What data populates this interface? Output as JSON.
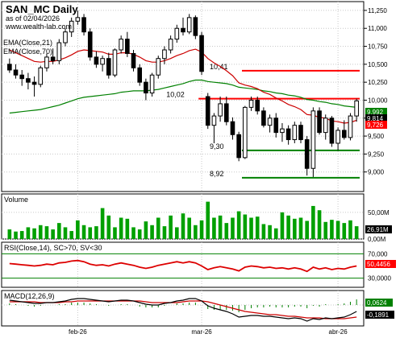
{
  "chart_data": {
    "type": "stock-candlestick",
    "header": {
      "title": "SAN_MC Daily",
      "date_line": "as of 02/04/2026",
      "site": "www.wealth-lab.com",
      "ema_short": "EMA(Close,21)",
      "ema_long": "EMA(Close,70)"
    },
    "x_labels": [
      {
        "label": "feb-26",
        "index": 11
      },
      {
        "label": "mar-26",
        "index": 31
      },
      {
        "label": "abr-26",
        "index": 53
      }
    ],
    "price_axis": {
      "range": [
        8.75,
        11.35
      ],
      "ticks": [
        "11,250",
        "11,000",
        "10,750",
        "10,500",
        "10,250",
        "10,000",
        "9,750",
        "9,500",
        "9,250",
        "9,000"
      ],
      "tick_values": [
        11.25,
        11.0,
        10.75,
        10.5,
        10.25,
        10.0,
        9.75,
        9.5,
        9.25,
        9.0
      ]
    },
    "candles": [
      {
        "o": 10.5,
        "h": 10.58,
        "l": 10.38,
        "c": 10.42
      },
      {
        "o": 10.42,
        "h": 10.5,
        "l": 10.3,
        "c": 10.35
      },
      {
        "o": 10.35,
        "h": 10.42,
        "l": 10.2,
        "c": 10.3
      },
      {
        "o": 10.3,
        "h": 10.38,
        "l": 10.15,
        "c": 10.25
      },
      {
        "o": 10.25,
        "h": 10.33,
        "l": 10.05,
        "c": 10.22
      },
      {
        "o": 10.22,
        "h": 10.48,
        "l": 10.18,
        "c": 10.45
      },
      {
        "o": 10.45,
        "h": 10.65,
        "l": 10.4,
        "c": 10.6
      },
      {
        "o": 10.6,
        "h": 10.72,
        "l": 10.5,
        "c": 10.55
      },
      {
        "o": 10.55,
        "h": 10.85,
        "l": 10.5,
        "c": 10.8
      },
      {
        "o": 10.8,
        "h": 11.0,
        "l": 10.75,
        "c": 10.95
      },
      {
        "o": 10.95,
        "h": 11.15,
        "l": 10.88,
        "c": 11.1
      },
      {
        "o": 11.1,
        "h": 11.25,
        "l": 11.05,
        "c": 11.15
      },
      {
        "o": 11.15,
        "h": 11.2,
        "l": 10.9,
        "c": 10.95
      },
      {
        "o": 10.95,
        "h": 11.0,
        "l": 10.55,
        "c": 10.6
      },
      {
        "o": 10.6,
        "h": 10.68,
        "l": 10.45,
        "c": 10.5
      },
      {
        "o": 10.5,
        "h": 10.62,
        "l": 10.4,
        "c": 10.58
      },
      {
        "o": 10.58,
        "h": 10.66,
        "l": 10.3,
        "c": 10.35
      },
      {
        "o": 10.35,
        "h": 10.72,
        "l": 10.32,
        "c": 10.7
      },
      {
        "o": 10.7,
        "h": 10.9,
        "l": 10.65,
        "c": 10.85
      },
      {
        "o": 10.85,
        "h": 10.95,
        "l": 10.6,
        "c": 10.65
      },
      {
        "o": 10.65,
        "h": 10.7,
        "l": 10.4,
        "c": 10.45
      },
      {
        "o": 10.45,
        "h": 10.5,
        "l": 10.2,
        "c": 10.25
      },
      {
        "o": 10.25,
        "h": 10.3,
        "l": 10.0,
        "c": 10.1
      },
      {
        "o": 10.1,
        "h": 10.38,
        "l": 10.05,
        "c": 10.35
      },
      {
        "o": 10.35,
        "h": 10.62,
        "l": 10.3,
        "c": 10.58
      },
      {
        "o": 10.58,
        "h": 10.75,
        "l": 10.5,
        "c": 10.7
      },
      {
        "o": 10.7,
        "h": 10.9,
        "l": 10.65,
        "c": 10.85
      },
      {
        "o": 10.85,
        "h": 11.05,
        "l": 10.8,
        "c": 11.0
      },
      {
        "o": 11.0,
        "h": 11.15,
        "l": 10.9,
        "c": 10.95
      },
      {
        "o": 10.95,
        "h": 11.2,
        "l": 10.92,
        "c": 11.15
      },
      {
        "o": 11.15,
        "h": 11.18,
        "l": 10.85,
        "c": 10.9
      },
      {
        "o": 10.9,
        "h": 10.95,
        "l": 10.35,
        "c": 10.4
      },
      {
        "o": 10.05,
        "h": 10.1,
        "l": 9.6,
        "c": 9.65
      },
      {
        "o": 9.65,
        "h": 9.82,
        "l": 9.4,
        "c": 9.78
      },
      {
        "o": 9.78,
        "h": 10.05,
        "l": 9.7,
        "c": 9.95
      },
      {
        "o": 9.95,
        "h": 10.05,
        "l": 9.65,
        "c": 9.7
      },
      {
        "o": 9.7,
        "h": 9.76,
        "l": 9.45,
        "c": 9.52
      },
      {
        "o": 9.52,
        "h": 9.56,
        "l": 9.15,
        "c": 9.2
      },
      {
        "o": 9.2,
        "h": 9.92,
        "l": 9.18,
        "c": 9.9
      },
      {
        "o": 9.9,
        "h": 10.05,
        "l": 9.85,
        "c": 10.0
      },
      {
        "o": 10.0,
        "h": 10.05,
        "l": 9.8,
        "c": 9.85
      },
      {
        "o": 9.85,
        "h": 9.9,
        "l": 9.62,
        "c": 9.65
      },
      {
        "o": 9.65,
        "h": 9.8,
        "l": 9.55,
        "c": 9.75
      },
      {
        "o": 9.75,
        "h": 9.82,
        "l": 9.48,
        "c": 9.55
      },
      {
        "o": 9.55,
        "h": 9.68,
        "l": 9.42,
        "c": 9.6
      },
      {
        "o": 9.6,
        "h": 9.65,
        "l": 9.38,
        "c": 9.45
      },
      {
        "o": 9.45,
        "h": 9.7,
        "l": 9.4,
        "c": 9.65
      },
      {
        "o": 9.65,
        "h": 9.7,
        "l": 9.4,
        "c": 9.45
      },
      {
        "o": 9.45,
        "h": 9.5,
        "l": 8.95,
        "c": 9.05
      },
      {
        "o": 9.05,
        "h": 9.9,
        "l": 8.93,
        "c": 9.85
      },
      {
        "o": 9.85,
        "h": 9.9,
        "l": 9.52,
        "c": 9.55
      },
      {
        "o": 9.55,
        "h": 9.8,
        "l": 9.45,
        "c": 9.75
      },
      {
        "o": 9.75,
        "h": 9.78,
        "l": 9.35,
        "c": 9.4
      },
      {
        "o": 9.4,
        "h": 9.62,
        "l": 9.3,
        "c": 9.58
      },
      {
        "o": 9.58,
        "h": 9.72,
        "l": 9.45,
        "c": 9.48
      },
      {
        "o": 9.48,
        "h": 9.82,
        "l": 9.44,
        "c": 9.78
      },
      {
        "o": 9.78,
        "h": 10.02,
        "l": 9.7,
        "c": 9.99
      }
    ],
    "ema21": [
      10.7,
      10.66,
      10.62,
      10.58,
      10.54,
      10.53,
      10.54,
      10.54,
      10.56,
      10.59,
      10.63,
      10.68,
      10.7,
      10.69,
      10.68,
      10.67,
      10.64,
      10.64,
      10.66,
      10.66,
      10.64,
      10.6,
      10.55,
      10.53,
      10.53,
      10.55,
      10.58,
      10.62,
      10.65,
      10.69,
      10.71,
      10.67,
      10.58,
      10.52,
      10.47,
      10.41,
      10.34,
      10.24,
      10.21,
      10.19,
      10.16,
      10.11,
      10.08,
      10.03,
      9.99,
      9.94,
      9.91,
      9.87,
      9.8,
      9.79,
      9.76,
      9.75,
      9.71,
      9.7,
      9.68,
      9.69,
      9.72
    ],
    "ema70": [
      9.82,
      9.83,
      9.84,
      9.85,
      9.86,
      9.87,
      9.89,
      9.91,
      9.93,
      9.96,
      9.99,
      10.02,
      10.04,
      10.05,
      10.06,
      10.07,
      10.08,
      10.09,
      10.11,
      10.12,
      10.13,
      10.13,
      10.13,
      10.14,
      10.15,
      10.17,
      10.19,
      10.21,
      10.23,
      10.26,
      10.28,
      10.28,
      10.26,
      10.25,
      10.24,
      10.23,
      10.21,
      10.18,
      10.17,
      10.16,
      10.15,
      10.13,
      10.12,
      10.1,
      10.09,
      10.07,
      10.06,
      10.04,
      10.01,
      10.0,
      9.98,
      9.97,
      9.95,
      9.94,
      9.92,
      9.91,
      9.9
    ],
    "levels": [
      {
        "label": "10,41",
        "value": 10.41,
        "color": "#ff0000",
        "x_from_index": 38
      },
      {
        "label": "10,02",
        "value": 10.02,
        "color": "#ff0000",
        "x_from_index": 31
      },
      {
        "label": "9,30",
        "value": 9.3,
        "color": "#008000",
        "x_from_index": 38
      },
      {
        "label": "8,92",
        "value": 8.92,
        "color": "#008000",
        "x_from_index": 38
      }
    ],
    "price_badges": [
      {
        "label": "9,992",
        "color": "#008000",
        "value": 9.99
      },
      {
        "label": "9,814",
        "color": "#000000",
        "value": 9.814
      },
      {
        "label": "9,726",
        "color": "#ff0000",
        "value": 9.726
      }
    ],
    "volume": {
      "title": "Volume",
      "ticks": [
        "50,00M",
        "0,00M"
      ],
      "tick_values": [
        50,
        0
      ],
      "max": 80,
      "values": [
        18,
        14,
        15,
        22,
        20,
        26,
        24,
        18,
        30,
        22,
        15,
        35,
        26,
        22,
        24,
        58,
        44,
        22,
        40,
        38,
        22,
        18,
        33,
        26,
        40,
        24,
        44,
        22,
        48,
        40,
        26,
        35,
        70,
        40,
        44,
        30,
        40,
        52,
        46,
        40,
        42,
        28,
        26,
        20,
        50,
        44,
        38,
        40,
        34,
        62,
        54,
        32,
        36,
        34,
        30,
        35,
        24
      ],
      "badge": "26,91M"
    },
    "rsi": {
      "title": "RSI(Close,14), SC>70, SV<30",
      "ticks": [
        "70,000",
        "30,0000"
      ],
      "tick_values": [
        70,
        30
      ],
      "range": [
        15,
        85
      ],
      "values": [
        54,
        53,
        52,
        51,
        50,
        51,
        53,
        52,
        55,
        56,
        58,
        59,
        57,
        53,
        51,
        52,
        50,
        53,
        55,
        53,
        51,
        48,
        46,
        48,
        51,
        53,
        55,
        57,
        55,
        57,
        55,
        50,
        44,
        47,
        49,
        47,
        45,
        42,
        48,
        50,
        49,
        47,
        48,
        46,
        47,
        45,
        47,
        45,
        41,
        48,
        45,
        47,
        44,
        46,
        45,
        48,
        50
      ],
      "badge": "50,4456"
    },
    "macd": {
      "title": "MACD(12,26,9)",
      "badge_top": "0,0624",
      "badge_bottom": "-0,1891",
      "range": [
        -0.25,
        0.15
      ],
      "macd": [
        0.06,
        0.05,
        0.04,
        0.03,
        0.02,
        0.02,
        0.03,
        0.03,
        0.04,
        0.05,
        0.07,
        0.08,
        0.08,
        0.07,
        0.06,
        0.05,
        0.04,
        0.05,
        0.06,
        0.06,
        0.05,
        0.03,
        0.01,
        0.0,
        0.0,
        0.02,
        0.03,
        0.05,
        0.06,
        0.08,
        0.08,
        0.05,
        -0.01,
        -0.04,
        -0.06,
        -0.08,
        -0.11,
        -0.15,
        -0.14,
        -0.13,
        -0.13,
        -0.14,
        -0.14,
        -0.15,
        -0.16,
        -0.17,
        -0.16,
        -0.17,
        -0.2,
        -0.17,
        -0.18,
        -0.16,
        -0.17,
        -0.16,
        -0.15,
        -0.12,
        -0.08
      ],
      "signal": [
        0.04,
        0.04,
        0.04,
        0.04,
        0.04,
        0.03,
        0.03,
        0.03,
        0.03,
        0.04,
        0.04,
        0.05,
        0.05,
        0.05,
        0.05,
        0.05,
        0.05,
        0.05,
        0.05,
        0.05,
        0.05,
        0.05,
        0.04,
        0.03,
        0.03,
        0.03,
        0.03,
        0.03,
        0.04,
        0.05,
        0.05,
        0.05,
        0.04,
        0.02,
        0.0,
        -0.02,
        -0.04,
        -0.06,
        -0.08,
        -0.09,
        -0.1,
        -0.11,
        -0.12,
        -0.12,
        -0.13,
        -0.14,
        -0.14,
        -0.15,
        -0.16,
        -0.16,
        -0.16,
        -0.17,
        -0.17,
        -0.17,
        -0.17,
        -0.16,
        -0.15
      ]
    }
  }
}
